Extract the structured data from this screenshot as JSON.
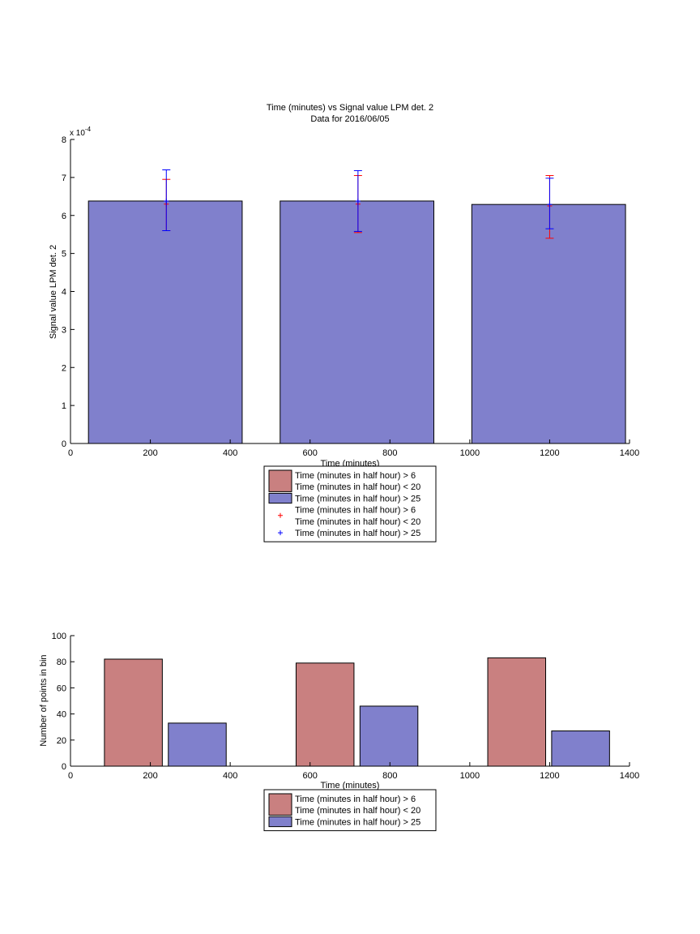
{
  "chart_data": [
    {
      "type": "bar",
      "title": "Time (minutes) vs Signal value LPM det. 2",
      "subtitle": "Data for 2016/06/05",
      "xlabel": "Time (minutes)",
      "ylabel": "Signal value LPM det. 2",
      "y_exponent_label": "x 10",
      "y_exponent_power": "-4",
      "xlim": [
        0,
        1400
      ],
      "ylim": [
        0,
        8
      ],
      "xticks": [
        "0",
        "200",
        "400",
        "600",
        "800",
        "1000",
        "1200",
        "1400"
      ],
      "yticks": [
        "0",
        "1",
        "2",
        "3",
        "4",
        "5",
        "6",
        "7",
        "8"
      ],
      "bars": [
        {
          "x_start": 45,
          "x_end": 430,
          "value": 6.38
        },
        {
          "x_start": 525,
          "x_end": 910,
          "value": 6.38
        },
        {
          "x_start": 1005,
          "x_end": 1390,
          "value": 6.29
        }
      ],
      "series": [
        {
          "name_line1": "Time (minutes in half hour) > 6",
          "name_line2": "Time (minutes in half hour) < 20",
          "color": "#c98080",
          "errorbars": [
            {
              "x": 240,
              "y": 6.3,
              "low": 5.6,
              "high": 6.95
            },
            {
              "x": 720,
              "y": 6.3,
              "low": 5.55,
              "high": 7.05
            },
            {
              "x": 1200,
              "y": 6.25,
              "low": 5.4,
              "high": 7.05
            }
          ]
        },
        {
          "name": "Time (minutes in half hour) > 25",
          "color": "#8080cc",
          "errorbars": [
            {
              "x": 240,
              "y": 6.38,
              "low": 5.6,
              "high": 7.2
            },
            {
              "x": 720,
              "y": 6.38,
              "low": 5.58,
              "high": 7.18
            },
            {
              "x": 1200,
              "y": 6.29,
              "low": 5.65,
              "high": 6.98
            }
          ]
        }
      ],
      "errorbar_colors": {
        "red": "#ff0000",
        "blue": "#0000ff"
      },
      "legend": [
        {
          "kind": "patch",
          "color": "#c98080",
          "line1": "Time (minutes in half hour) > 6",
          "line2": "Time (minutes in half hour) < 20"
        },
        {
          "kind": "patch",
          "color": "#8080cc",
          "line1": "Time (minutes in half hour) > 25"
        },
        {
          "kind": "marker",
          "color": "#ff0000",
          "line1": "Time (minutes in half hour) > 6",
          "line2": "Time (minutes in half hour) < 20"
        },
        {
          "kind": "marker",
          "color": "#0000ff",
          "line1": "Time (minutes in half hour) > 25"
        }
      ]
    },
    {
      "type": "bar",
      "title": "",
      "xlabel": "Time (minutes)",
      "ylabel": "Number of points in bin",
      "xlim": [
        0,
        1400
      ],
      "ylim": [
        0,
        100
      ],
      "xticks": [
        "0",
        "200",
        "400",
        "600",
        "800",
        "1000",
        "1200",
        "1400"
      ],
      "yticks": [
        "0",
        "20",
        "40",
        "60",
        "80",
        "100"
      ],
      "series": [
        {
          "name_line1": "Time (minutes in half hour) > 6",
          "name_line2": "Time (minutes in half hour) < 20",
          "color": "#c98080",
          "bars": [
            {
              "x_start": 85,
              "x_end": 230,
              "value": 82
            },
            {
              "x_start": 565,
              "x_end": 710,
              "value": 79
            },
            {
              "x_start": 1045,
              "x_end": 1190,
              "value": 83
            }
          ]
        },
        {
          "name": "Time (minutes in half hour) > 25",
          "color": "#8080cc",
          "bars": [
            {
              "x_start": 245,
              "x_end": 390,
              "value": 33
            },
            {
              "x_start": 725,
              "x_end": 870,
              "value": 46
            },
            {
              "x_start": 1205,
              "x_end": 1350,
              "value": 27
            }
          ]
        }
      ],
      "legend": [
        {
          "kind": "patch",
          "color": "#c98080",
          "line1": "Time (minutes in half hour) > 6",
          "line2": "Time (minutes in half hour) < 20"
        },
        {
          "kind": "patch",
          "color": "#8080cc",
          "line1": "Time (minutes in half hour) > 25"
        }
      ]
    }
  ]
}
